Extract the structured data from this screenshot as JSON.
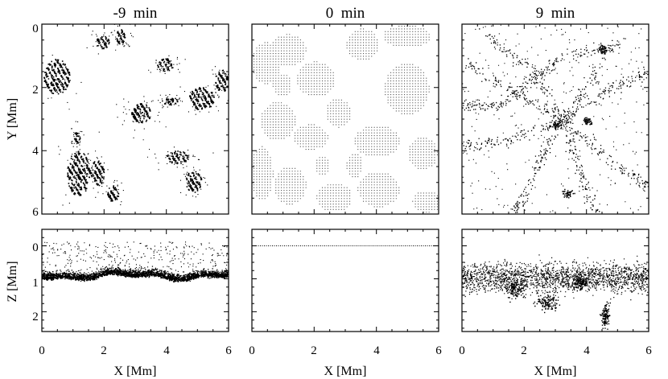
{
  "figure": {
    "x_axis_label": "X [Mm]",
    "top_row_y_label": "Y [Mm]",
    "bottom_row_y_label": "Z [Mm]",
    "colors": {
      "ink": "#000000",
      "background": "#ffffff",
      "grid_dots": "#555555"
    }
  },
  "chart_data": [
    {
      "type": "scatter",
      "title": "-9  min",
      "panel": "top-left",
      "xlabel": "",
      "ylabel": "Y [Mm]",
      "xlim": [
        0,
        6
      ],
      "ylim": [
        0,
        6
      ],
      "y_inverted": true,
      "x_ticks": [],
      "y_ticks": [
        "0",
        "2",
        "4",
        "6"
      ]
    },
    {
      "type": "scatter",
      "title": "0  min",
      "panel": "top-middle",
      "xlabel": "",
      "ylabel": "",
      "xlim": [
        0,
        6
      ],
      "ylim": [
        0,
        6
      ],
      "y_inverted": true,
      "x_ticks": [],
      "y_ticks": []
    },
    {
      "type": "scatter",
      "title": "9  min",
      "panel": "top-right",
      "xlabel": "",
      "ylabel": "",
      "xlim": [
        0,
        6
      ],
      "ylim": [
        0,
        6
      ],
      "y_inverted": true,
      "x_ticks": [],
      "y_ticks": []
    },
    {
      "type": "scatter",
      "title": "",
      "panel": "bottom-left",
      "xlabel": "X [Mm]",
      "ylabel": "Z [Mm]",
      "xlim": [
        0,
        6
      ],
      "ylim": [
        -0.5,
        2.6
      ],
      "y_inverted": true,
      "x_ticks": [
        "0",
        "2",
        "4",
        "6"
      ],
      "y_ticks": [
        "0",
        "1",
        "2"
      ]
    },
    {
      "type": "scatter",
      "title": "",
      "panel": "bottom-middle",
      "xlabel": "X [Mm]",
      "ylabel": "",
      "xlim": [
        0,
        6
      ],
      "ylim": [
        -0.5,
        2.6
      ],
      "y_inverted": true,
      "x_ticks": [
        "0",
        "2",
        "4",
        "6"
      ],
      "y_ticks": [],
      "reference_line_z": 0
    },
    {
      "type": "scatter",
      "title": "",
      "panel": "bottom-right",
      "xlabel": "X [Mm]",
      "ylabel": "",
      "xlim": [
        0,
        6
      ],
      "ylim": [
        -0.5,
        2.6
      ],
      "y_inverted": true,
      "x_ticks": [
        "0",
        "2",
        "4",
        "6"
      ],
      "y_ticks": []
    }
  ]
}
